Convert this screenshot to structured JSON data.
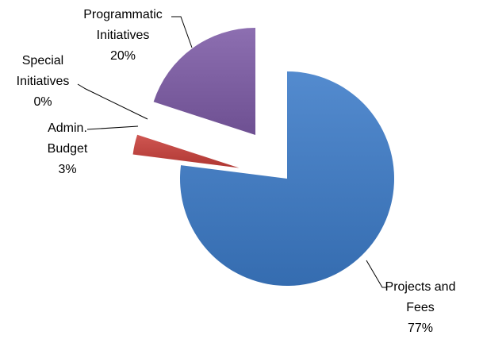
{
  "chart_data": {
    "type": "pie",
    "categories": [
      "Projects and Fees",
      "Admin. Budget",
      "Special Initiatives",
      "Programmatic Initiatives"
    ],
    "values": [
      77,
      3,
      0,
      20
    ],
    "value_labels": [
      "77%",
      "3%",
      "0%",
      "20%"
    ],
    "colors": [
      "#3c7bc8",
      "#c83f3a",
      "#9bbb59",
      "#7d5ba6"
    ]
  }
}
